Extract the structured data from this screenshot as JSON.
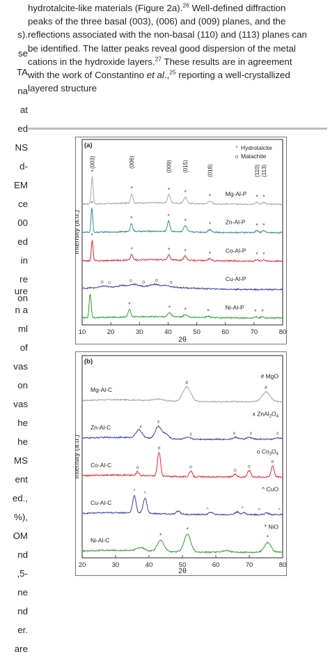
{
  "paragraph_lines": [
    {
      "text": "hydrotalcite-like materials (Figure 2a).",
      "sup": "26",
      "tail": " Well-defined diffraction"
    },
    {
      "text": "peaks of the three basal (003), (006) and (009) planes, and the"
    },
    {
      "text": "reflections associated with the non-basal (110) and (113) planes can"
    },
    {
      "text": "be identified. The latter peaks reveal good dispersion of the metal"
    },
    {
      "text": "cations in the hydroxide layers.",
      "sup": "27",
      "tail": " These results are in agreement"
    },
    {
      "text": "with the work of Constantino ",
      "italic": "et al",
      "tail2": ".,",
      "sup2": "25",
      "tail": " reporting a well-crystallized"
    },
    {
      "text": "layered structure"
    }
  ],
  "left_column_fragments_top": [
    "s).",
    "se",
    "TA",
    "na",
    "at",
    "ed",
    "NS",
    "d-",
    "EM",
    "ce",
    "00",
    "ed",
    "in",
    "re",
    "on"
  ],
  "left_column_fragments_bottom": [
    "ure",
    "n a",
    "ml",
    "of",
    "vas",
    "on",
    "vas",
    "he",
    "he",
    "MS",
    "ent",
    "ed.,",
    "%),",
    "OM",
    "nd",
    ",5-",
    "ne",
    "nd",
    "er.",
    "are"
  ],
  "chart_data": [
    {
      "type": "line",
      "panel_label": "(a)",
      "xlabel": "2θ",
      "ylabel": "Intensity (a.u.)",
      "xlim": [
        10,
        80
      ],
      "x_ticks": [
        10,
        20,
        30,
        40,
        50,
        60,
        70,
        80
      ],
      "legend": [
        {
          "symbol": "*",
          "label": "Hydrotalcite"
        },
        {
          "symbol": "o",
          "label": "Malachite"
        }
      ],
      "peak_labels": [
        {
          "text": "(003)",
          "x": 13.5
        },
        {
          "text": "(006)",
          "x": 27.3
        },
        {
          "text": "(009)",
          "x": 40.3
        },
        {
          "text": "(015)",
          "x": 46.0
        },
        {
          "text": "(018)",
          "x": 54.6
        },
        {
          "text": "(110)",
          "x": 71.0
        },
        {
          "text": "(113)",
          "x": 73.4
        }
      ],
      "series": [
        {
          "name": "Mg-Al-P",
          "color": "#a6a6a6",
          "offset": 4,
          "peaks": [
            [
              13.5,
              1.0,
              0.32
            ],
            [
              27.3,
              0.35,
              0.4
            ],
            [
              40.3,
              0.3,
              0.5
            ],
            [
              46.0,
              0.22,
              0.55
            ],
            [
              54.6,
              0.1,
              0.6
            ],
            [
              71.0,
              0.08,
              0.45
            ],
            [
              73.4,
              0.08,
              0.45
            ]
          ],
          "markers": [
            {
              "x": 13.5,
              "symbol": "*"
            },
            {
              "x": 27.3,
              "symbol": "*"
            },
            {
              "x": 40.3,
              "symbol": "*"
            },
            {
              "x": 46.0,
              "symbol": "*"
            },
            {
              "x": 54.6,
              "symbol": "*"
            },
            {
              "x": 71.0,
              "symbol": "*"
            },
            {
              "x": 73.4,
              "symbol": "*"
            }
          ]
        },
        {
          "name": "Zn-Al-P",
          "color": "#2e8b93",
          "offset": 3,
          "peaks": [
            [
              13.4,
              0.9,
              0.3
            ],
            [
              27.2,
              0.3,
              0.4
            ],
            [
              40.2,
              0.38,
              0.45
            ],
            [
              46.0,
              0.22,
              0.55
            ],
            [
              54.6,
              0.1,
              0.6
            ],
            [
              71.0,
              0.08,
              0.45
            ],
            [
              73.4,
              0.08,
              0.45
            ]
          ],
          "markers": [
            {
              "x": 13.4,
              "symbol": "*"
            },
            {
              "x": 27.2,
              "symbol": "*"
            },
            {
              "x": 40.2,
              "symbol": "*"
            },
            {
              "x": 46.0,
              "symbol": "*"
            },
            {
              "x": 54.6,
              "symbol": "*"
            },
            {
              "x": 71.0,
              "symbol": "*"
            },
            {
              "x": 73.4,
              "symbol": "*"
            }
          ]
        },
        {
          "name": "Co-Al-P",
          "color": "#e8242c",
          "offset": 2,
          "peaks": [
            [
              13.5,
              0.75,
              0.3
            ],
            [
              27.3,
              0.2,
              0.4
            ],
            [
              40.3,
              0.18,
              0.45
            ],
            [
              46.0,
              0.15,
              0.5
            ],
            [
              54.6,
              0.07,
              0.6
            ],
            [
              71.0,
              0.06,
              0.45
            ],
            [
              73.4,
              0.06,
              0.45
            ]
          ],
          "markers": [
            {
              "x": 13.5,
              "symbol": "*"
            },
            {
              "x": 27.3,
              "symbol": "*"
            },
            {
              "x": 40.3,
              "symbol": "*"
            },
            {
              "x": 46.0,
              "symbol": "*"
            },
            {
              "x": 54.6,
              "symbol": "*"
            },
            {
              "x": 71.0,
              "symbol": "*"
            },
            {
              "x": 73.4,
              "symbol": "*"
            }
          ]
        },
        {
          "name": "Cu-Al-P",
          "color": "#3b3ea8",
          "offset": 1,
          "peaks": [
            [
              17.5,
              0.05,
              1.0
            ],
            [
              24.0,
              0.05,
              1.0
            ],
            [
              28.0,
              0.08,
              1.2
            ],
            [
              35.5,
              0.08,
              1.5
            ],
            [
              39.5,
              0.05,
              1.0
            ]
          ],
          "markers": [
            {
              "x": 17.0,
              "symbol": "o"
            },
            {
              "x": 19.5,
              "symbol": "o"
            },
            {
              "x": 27.0,
              "symbol": "o"
            },
            {
              "x": 31.5,
              "symbol": "o"
            },
            {
              "x": 36.0,
              "symbol": "o"
            },
            {
              "x": 41.0,
              "symbol": "o"
            }
          ]
        },
        {
          "name": "Ni-Al-P",
          "color": "#2ca02c",
          "offset": 0,
          "peaks": [
            [
              12.8,
              0.88,
              0.35
            ],
            [
              26.5,
              0.28,
              0.45
            ],
            [
              40.5,
              0.15,
              0.6
            ],
            [
              46.0,
              0.08,
              0.6
            ],
            [
              54.0,
              0.05,
              0.6
            ],
            [
              70.5,
              0.05,
              0.5
            ],
            [
              73.0,
              0.05,
              0.5
            ]
          ],
          "markers": [
            {
              "x": 12.8,
              "symbol": "*"
            },
            {
              "x": 26.5,
              "symbol": "*"
            },
            {
              "x": 40.5,
              "symbol": "*"
            },
            {
              "x": 46.0,
              "symbol": "*"
            },
            {
              "x": 54.0,
              "symbol": "*"
            },
            {
              "x": 70.5,
              "symbol": "*"
            },
            {
              "x": 73.0,
              "symbol": "*"
            }
          ]
        }
      ]
    },
    {
      "type": "line",
      "panel_label": "(b)",
      "xlabel": "2θ",
      "ylabel": "Intensity (a.u.)",
      "xlim": [
        20,
        80
      ],
      "x_ticks": [
        20,
        30,
        40,
        50,
        60,
        70,
        80
      ],
      "series": [
        {
          "name": "Mg-Al-C",
          "color": "#a6a6a6",
          "offset": 4,
          "legend": {
            "symbol": "#",
            "label": "MgO"
          },
          "peaks": [
            [
              43.0,
              0.05,
              1.5
            ],
            [
              51.3,
              0.45,
              1.2
            ],
            [
              75.0,
              0.3,
              1.2
            ]
          ],
          "markers": [
            {
              "x": 51.3,
              "symbol": "#"
            },
            {
              "x": 75.0,
              "symbol": "#"
            }
          ]
        },
        {
          "name": "Zn-Al-C",
          "color": "#3b3ea8",
          "offset": 3,
          "legend": {
            "symbol": "x",
            "label": "ZnAl",
            "sub1": "2",
            "mid": "O",
            "sub2": "4"
          },
          "peaks": [
            [
              37.0,
              0.25,
              0.9
            ],
            [
              42.8,
              0.38,
              0.9
            ],
            [
              45.0,
              0.15,
              0.8
            ],
            [
              51.5,
              0.05,
              0.8
            ],
            [
              66.0,
              0.06,
              0.8
            ],
            [
              70.0,
              0.06,
              0.8
            ],
            [
              78.5,
              0.05,
              0.8
            ]
          ],
          "markers": [
            {
              "x": 37.5,
              "symbol": "x"
            },
            {
              "x": 42.8,
              "symbol": "x"
            },
            {
              "x": 52.5,
              "symbol": "x"
            },
            {
              "x": 65.5,
              "symbol": "x"
            },
            {
              "x": 70.5,
              "symbol": "x"
            },
            {
              "x": 78.5,
              "symbol": "x"
            }
          ]
        },
        {
          "name": "Co-Al-C",
          "color": "#e8242c",
          "offset": 2,
          "legend": {
            "symbol": "o",
            "label": "Co",
            "sub1": "3",
            "mid": "O",
            "sub2": "4"
          },
          "peaks": [
            [
              36.6,
              0.12,
              0.4
            ],
            [
              43.0,
              0.75,
              0.45
            ],
            [
              52.5,
              0.18,
              0.45
            ],
            [
              65.8,
              0.08,
              0.5
            ],
            [
              70.0,
              0.2,
              0.5
            ],
            [
              77.0,
              0.35,
              0.45
            ]
          ],
          "markers": [
            {
              "x": 36.6,
              "symbol": "o"
            },
            {
              "x": 43.0,
              "symbol": "o"
            },
            {
              "x": 52.5,
              "symbol": "o"
            },
            {
              "x": 65.8,
              "symbol": "o"
            },
            {
              "x": 70.0,
              "symbol": "o"
            },
            {
              "x": 77.0,
              "symbol": "o"
            }
          ]
        },
        {
          "name": "Cu-Al-C",
          "color": "#3b3ea8",
          "offset": 1,
          "legend": {
            "symbol": "^",
            "label": "CuO"
          },
          "peaks": [
            [
              35.6,
              0.55,
              0.5
            ],
            [
              38.8,
              0.48,
              0.55
            ],
            [
              48.8,
              0.1,
              0.6
            ],
            [
              58.5,
              0.07,
              0.6
            ],
            [
              66.3,
              0.08,
              0.6
            ],
            [
              68.3,
              0.06,
              0.6
            ],
            [
              75.2,
              0.05,
              0.6
            ]
          ],
          "markers": [
            {
              "x": 35.6,
              "symbol": "^"
            },
            {
              "x": 38.8,
              "symbol": "^"
            },
            {
              "x": 57.5,
              "symbol": "^"
            },
            {
              "x": 68.0,
              "symbol": "^"
            },
            {
              "x": 73.0,
              "symbol": "^"
            },
            {
              "x": 79.0,
              "symbol": "^"
            }
          ]
        },
        {
          "name": "Ni-Al-C",
          "color": "#2ca02c",
          "offset": 0,
          "legend": {
            "symbol": "*",
            "label": "NiO"
          },
          "peaks": [
            [
              37.5,
              0.1,
              1.2
            ],
            [
              43.5,
              0.35,
              1.0
            ],
            [
              51.5,
              0.55,
              1.0
            ],
            [
              63.0,
              0.05,
              1.2
            ],
            [
              75.5,
              0.3,
              1.0
            ]
          ],
          "markers": [
            {
              "x": 43.5,
              "symbol": "*"
            },
            {
              "x": 51.5,
              "symbol": "*"
            },
            {
              "x": 75.5,
              "symbol": "*"
            }
          ]
        }
      ]
    }
  ]
}
